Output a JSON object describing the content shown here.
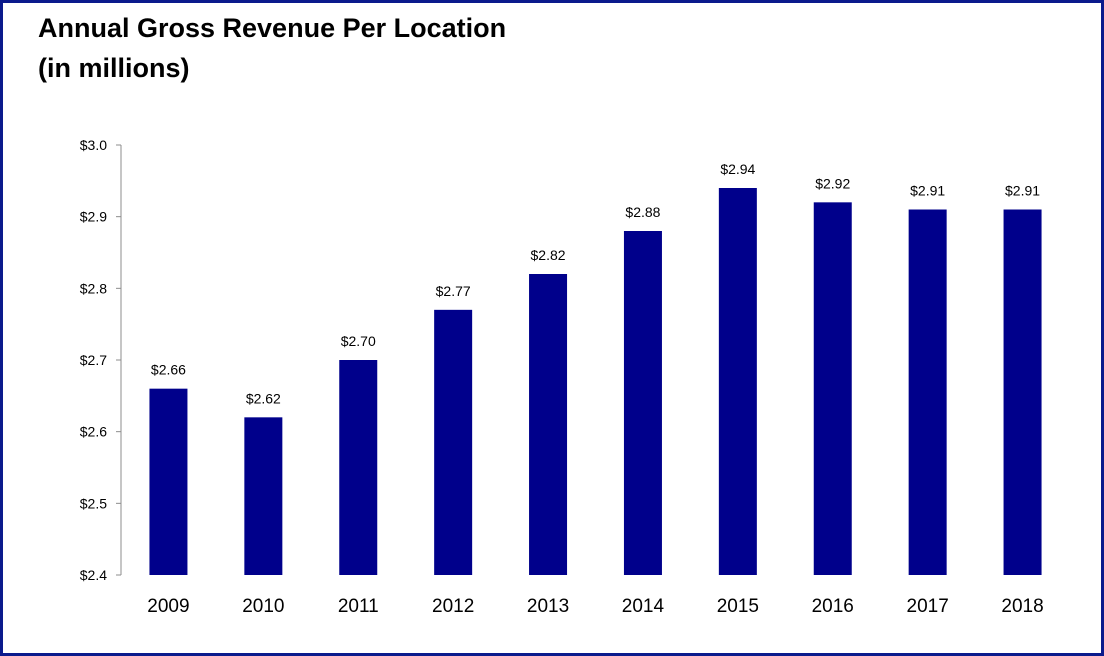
{
  "title_line1": "Annual Gross Revenue Per Location",
  "title_line2": "(in millions)",
  "colors": {
    "bar": "#00008b",
    "frame": "#0b1a8c",
    "axis": "#8c8c8c"
  },
  "chart_data": {
    "type": "bar",
    "title": "Annual Gross Revenue Per Location (in millions)",
    "categories": [
      "2009",
      "2010",
      "2011",
      "2012",
      "2013",
      "2014",
      "2015",
      "2016",
      "2017",
      "2018"
    ],
    "values": [
      2.66,
      2.62,
      2.7,
      2.77,
      2.82,
      2.88,
      2.94,
      2.92,
      2.91,
      2.91
    ],
    "data_labels": [
      "$2.66",
      "$2.62",
      "$2.70",
      "$2.77",
      "$2.82",
      "$2.88",
      "$2.94",
      "$2.92",
      "$2.91",
      "$2.91"
    ],
    "ylim": [
      2.4,
      3.0
    ],
    "yticks": [
      2.4,
      2.5,
      2.6,
      2.7,
      2.8,
      2.9,
      3.0
    ],
    "ytick_labels": [
      "$2.4",
      "$2.5",
      "$2.6",
      "$2.7",
      "$2.8",
      "$2.9",
      "$3.0"
    ],
    "xlabel": "",
    "ylabel": "",
    "grid": false,
    "legend": "none"
  }
}
